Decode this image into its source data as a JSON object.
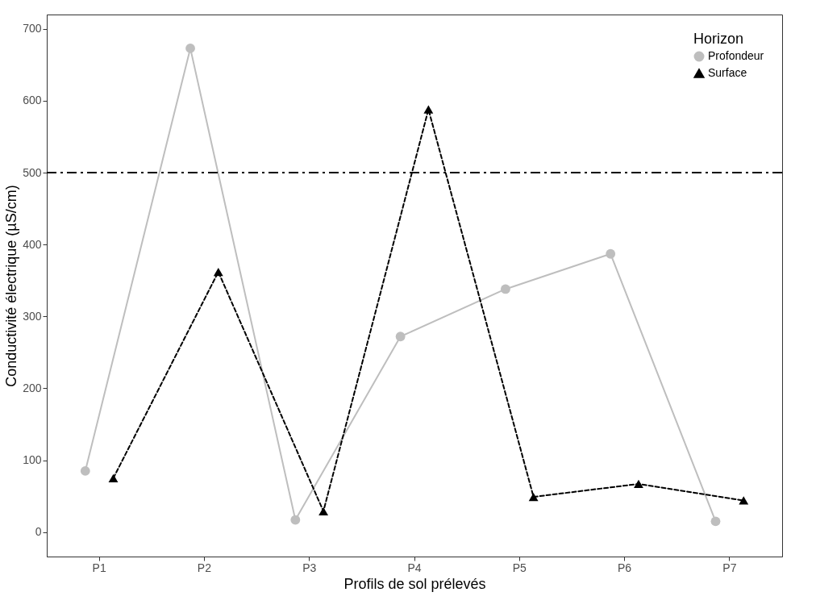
{
  "chart_data": {
    "type": "line",
    "xlabel": "Profils de sol prélevés",
    "ylabel": "Conductivité électrique (µS/cm)",
    "legend_title": "Horizon",
    "legend": "top right",
    "grid": false,
    "categories": [
      "P1",
      "P2",
      "P3",
      "P4",
      "P5",
      "P6",
      "P7"
    ],
    "ylim": [
      -34,
      720
    ],
    "yticks": [
      0,
      100,
      200,
      300,
      400,
      500,
      600,
      700
    ],
    "series": [
      {
        "name": "Profondeur",
        "color": "#bebebe",
        "marker": "circle",
        "line_style": "solid",
        "values": [
          85,
          673,
          17,
          272,
          338,
          387,
          15
        ]
      },
      {
        "name": "Surface",
        "color": "#000000",
        "marker": "triangle",
        "line_style": "dashed",
        "values": [
          75,
          362,
          29,
          588,
          49,
          67,
          44
        ]
      }
    ],
    "ref_lines": [
      {
        "axis": "y",
        "value": 500,
        "color": "#000000",
        "line_style": "dashdot"
      }
    ]
  }
}
